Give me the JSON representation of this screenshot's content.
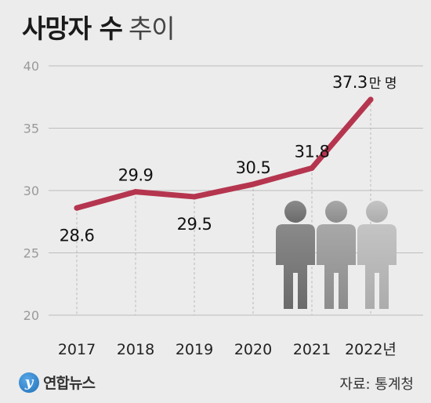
{
  "header": {
    "title_bold": "사망자 수",
    "title_light": "추이"
  },
  "chart_data": {
    "type": "line",
    "categories": [
      "2017",
      "2018",
      "2019",
      "2020",
      "2021",
      "2022년"
    ],
    "values": [
      28.6,
      29.9,
      29.5,
      30.5,
      31.8,
      37.3
    ],
    "data_labels": [
      "28.6",
      "29.9",
      "29.5",
      "30.5",
      "31.8",
      "37.3"
    ],
    "last_label_suffix": "만 명",
    "yticks": [
      40,
      35,
      30,
      25,
      20
    ],
    "ylim": [
      20,
      40
    ],
    "grid": true,
    "line_color": "#b5354f"
  },
  "footer": {
    "logo_text": "연합뉴스",
    "logo_mark": "y",
    "source": "자료: 통계청"
  },
  "colors": {
    "background": "#ececec",
    "line": "#b5354f"
  },
  "icons": [
    "people-illustration",
    "yonhap-logo-icon"
  ]
}
